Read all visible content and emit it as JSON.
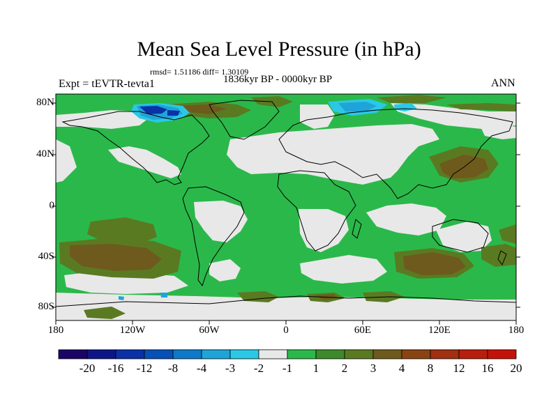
{
  "title": "Mean Sea Level Pressure (in hPa)",
  "stats_text": "rmsd= 1.51186 diff= 1.30109",
  "period": "1836kyr BP - 0000kyr BP",
  "experiment": "Expt = tEVTR-tevta1",
  "season": "ANN",
  "lat_labels": [
    "80N",
    "40N",
    "0",
    "40S",
    "80S"
  ],
  "lon_labels": [
    "180",
    "120W",
    "60W",
    "0",
    "60E",
    "120E",
    "180"
  ],
  "colorbar": {
    "colors": [
      "#1a0566",
      "#0e1687",
      "#0b31a6",
      "#0650b8",
      "#0e79c8",
      "#1fa4d8",
      "#2bc8e6",
      "#e8e8e8",
      "#2bb84a",
      "#3d8a2a",
      "#5a7a22",
      "#6e5a1d",
      "#8a4412",
      "#a03010",
      "#b81e0c",
      "#c4120a"
    ],
    "labels": [
      "-20",
      "-16",
      "-12",
      "-8",
      "-4",
      "-3",
      "-2",
      "-1",
      "1",
      "2",
      "3",
      "4",
      "8",
      "12",
      "16",
      "20"
    ]
  },
  "field_colors": {
    "ocean_base": "#2bb84a",
    "positive_strong": "#6e5a1d",
    "positive_mid": "#5a7a22",
    "near_zero": "#e8e8e8",
    "negative_light": "#2bc8e6",
    "negative_mid": "#1fa4d8",
    "negative_strong": "#0b31a6"
  }
}
